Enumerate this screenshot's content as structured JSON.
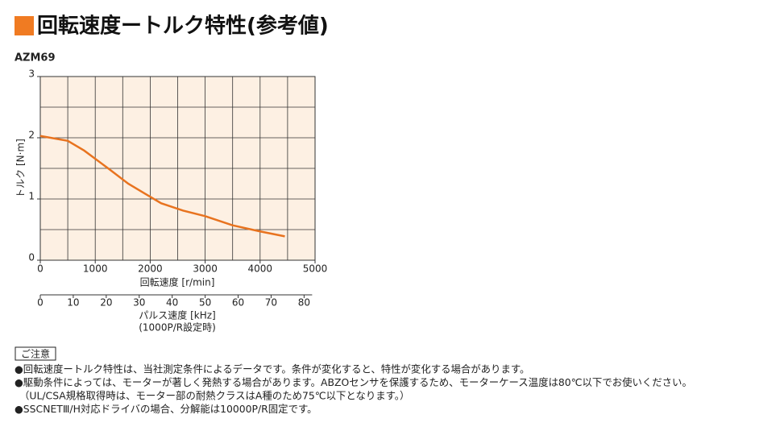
{
  "header": {
    "title": "回転速度ートルク特性(参考値)"
  },
  "chart_data": {
    "type": "line",
    "title": "AZM69",
    "x": [
      0,
      500,
      800,
      1250,
      1600,
      1900,
      2200,
      2600,
      3000,
      3500,
      4000,
      4450
    ],
    "values": [
      2.03,
      1.95,
      1.79,
      1.49,
      1.25,
      1.09,
      0.93,
      0.81,
      0.72,
      0.57,
      0.47,
      0.39
    ],
    "color": "#e8731f",
    "background": "#fdf0e3",
    "grid": true,
    "xlabel": "回転速度 [r/min]",
    "ylabel": "トルク [N·m]",
    "xlim": [
      0,
      5000
    ],
    "xticks": [
      0,
      1000,
      2000,
      3000,
      4000,
      5000
    ],
    "xgrid": [
      500,
      1000,
      1500,
      2000,
      2500,
      3000,
      3500,
      4000,
      4500
    ],
    "ylim": [
      0,
      3
    ],
    "yticks": [
      0,
      1,
      2,
      3
    ],
    "ygrid": [
      0.5,
      1,
      1.5,
      2,
      2.5
    ],
    "x2label": "パルス速度 [kHz]",
    "x2note": "(1000P/R設定時)",
    "x2lim": [
      0,
      83.33
    ],
    "x2ticks": [
      0,
      10,
      20,
      30,
      40,
      50,
      60,
      70,
      80
    ]
  },
  "notes": {
    "heading": "ご注意",
    "items": [
      "●回転速度ートルク特性は、当社測定条件によるデータです。条件が変化すると、特性が変化する場合があります。",
      "●駆動条件によっては、モーターが著しく発熱する場合があります。ABZOセンサを保護するため、モーターケース温度は80℃以下でお使いください。",
      "（UL/CSA規格取得時は、モーター部の耐熱クラスはA種のため75℃以下となります。）",
      "●SSCNETⅢ/H対応ドライバの場合、分解能は10000P/R固定です。"
    ]
  }
}
